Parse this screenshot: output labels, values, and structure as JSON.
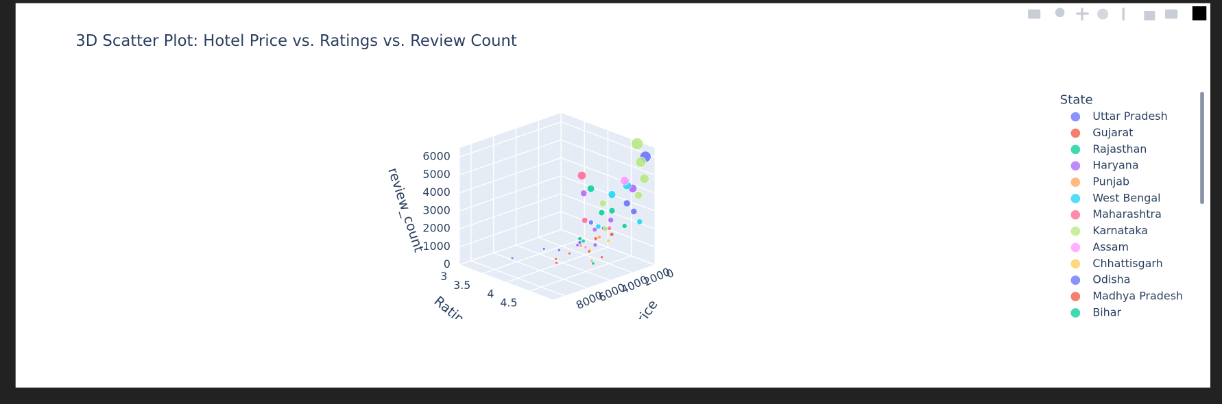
{
  "chart_data": {
    "type": "scatter3d",
    "title": "3D Scatter Plot: Hotel Price vs. Ratings vs. Review Count",
    "legend_title": "State",
    "x_label": "Price",
    "y_label": "Rating",
    "z_label": "review_count",
    "xlim": [
      0,
      9000
    ],
    "ylim": [
      3,
      5
    ],
    "zlim": [
      0,
      6500
    ],
    "xticks": [
      0,
      2000,
      4000,
      6000,
      8000
    ],
    "yticks": [
      3,
      3.5,
      4,
      4.5
    ],
    "zticks": [
      0,
      1000,
      2000,
      3000,
      4000,
      5000,
      6000
    ],
    "series": [
      {
        "name": "Uttar Pradesh",
        "color": "#636efa",
        "x": [
          1200,
          800,
          2500,
          400,
          3500,
          6000
        ],
        "y": [
          4.2,
          4.6,
          4.0,
          4.9,
          3.8,
          3.4
        ],
        "z": [
          1500,
          3200,
          800,
          6000,
          400,
          100
        ]
      },
      {
        "name": "Gujarat",
        "color": "#EF553B",
        "x": [
          1500,
          2200,
          3000,
          900,
          4500
        ],
        "y": [
          4.1,
          4.4,
          3.9,
          4.3,
          4.0
        ],
        "z": [
          900,
          300,
          200,
          1200,
          100
        ]
      },
      {
        "name": "Rajasthan",
        "color": "#00cc96",
        "x": [
          1800,
          600,
          2600,
          1100,
          3800
        ],
        "y": [
          4.3,
          4.5,
          4.1,
          3.9,
          4.6
        ],
        "z": [
          2600,
          1800,
          1000,
          3400,
          500
        ]
      },
      {
        "name": "Haryana",
        "color": "#ab63fa",
        "x": [
          1400,
          2000,
          900,
          3200,
          2700,
          700
        ],
        "y": [
          4.4,
          4.2,
          3.7,
          4.5,
          4.0,
          4.7
        ],
        "z": [
          2200,
          1600,
          2900,
          1300,
          700,
          4100
        ]
      },
      {
        "name": "Punjab",
        "color": "#FFA15A",
        "x": [
          1600,
          2400,
          3100
        ],
        "y": [
          4.2,
          4.0,
          4.4
        ],
        "z": [
          1100,
          600,
          300
        ]
      },
      {
        "name": "West Bengal",
        "color": "#19d3f3",
        "x": [
          500,
          1300,
          2100,
          800
        ],
        "y": [
          4.8,
          4.4,
          4.3,
          4.6
        ],
        "z": [
          2300,
          3600,
          1900,
          4200
        ]
      },
      {
        "name": "Maharashtra",
        "color": "#FF6692",
        "x": [
          1900,
          3300,
          700,
          5000
        ],
        "y": [
          3.9,
          4.3,
          4.2,
          4.1
        ],
        "z": [
          4300,
          2500,
          1400,
          300
        ]
      },
      {
        "name": "Karnataka",
        "color": "#B6E880",
        "x": [
          300,
          400,
          500,
          1700,
          2300,
          600
        ],
        "y": [
          4.7,
          4.8,
          4.9,
          4.3,
          4.5,
          4.8
        ],
        "z": [
          6500,
          5600,
          4800,
          3100,
          2000,
          3800
        ]
      },
      {
        "name": "Assam",
        "color": "#FF97FF",
        "x": [
          1000,
          2800
        ],
        "y": [
          4.6,
          4.2
        ],
        "z": [
          4500,
          800
        ]
      },
      {
        "name": "Chhattisgarh",
        "color": "#FECB52",
        "x": [
          2000,
          1200
        ],
        "y": [
          4.1,
          4.3
        ],
        "z": [
          400,
          900
        ]
      },
      {
        "name": "Odisha",
        "color": "#636efa",
        "x": [
          3600,
          1500,
          600
        ],
        "y": [
          3.5,
          4.0,
          4.7
        ],
        "z": [
          200,
          1700,
          2800
        ]
      },
      {
        "name": "Madhya Pradesh",
        "color": "#EF553B",
        "x": [
          4200,
          2500
        ],
        "y": [
          3.9,
          4.2
        ],
        "z": [
          150,
          500
        ]
      },
      {
        "name": "Bihar",
        "color": "#00cc96",
        "x": [
          1300,
          2900
        ],
        "y": [
          4.4,
          4.1
        ],
        "z": [
          2700,
          1200
        ]
      }
    ]
  }
}
